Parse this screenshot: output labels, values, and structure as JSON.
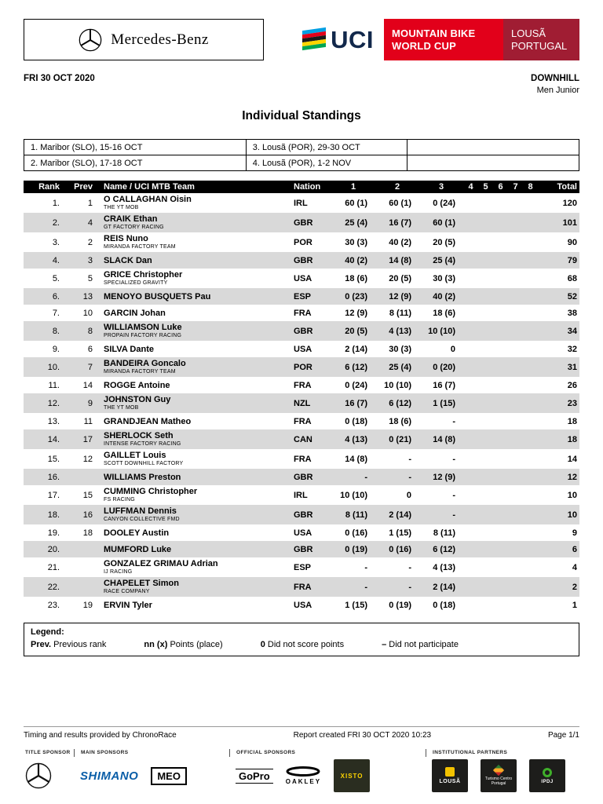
{
  "colors": {
    "uci_red": "#E2001A",
    "location_red": "#A01D33",
    "uci_navy": "#12284B",
    "table_header_bg": "#000000",
    "row_alt": "#D9D9D9",
    "shimano_blue": "#0A5EA8",
    "flag_blue": "#009FE3",
    "flag_red": "#E2001A",
    "flag_black": "#1A1A1A",
    "flag_yellow": "#FFD500",
    "flag_green": "#00A651"
  },
  "header": {
    "mercedes_label": "Mercedes-Benz",
    "uci_label": "UCI",
    "series_line1": "MOUNTAIN BIKE",
    "series_line2": "WORLD CUP",
    "location_line1": "LOUSÃ",
    "location_line2": "PORTUGAL"
  },
  "meta": {
    "date": "FRI 30 OCT 2020",
    "discipline": "DOWNHILL",
    "category": "Men Junior",
    "title": "Individual Standings"
  },
  "events": [
    {
      "c1": "1. Maribor (SLO), 15-16 OCT",
      "c2": "3. Lousã (POR), 29-30 OCT",
      "c3": ""
    },
    {
      "c1": "2. Maribor (SLO), 17-18 OCT",
      "c2": "4. Lousã (POR), 1-2 NOV",
      "c3": ""
    }
  ],
  "table": {
    "headers": [
      "Rank",
      "Prev",
      "Name / UCI MTB Team",
      "Nation",
      "1",
      "2",
      "3",
      "4",
      "5",
      "6",
      "7",
      "8",
      "Total"
    ],
    "rows": [
      {
        "rank": "1.",
        "prev": "1",
        "name": "O CALLAGHAN Oisin",
        "team": "THE YT MOB",
        "nation": "IRL",
        "r1": "60 (1)",
        "r2": "60 (1)",
        "r3": "0 (24)",
        "total": "120"
      },
      {
        "rank": "2.",
        "prev": "4",
        "name": "CRAIK Ethan",
        "team": "GT FACTORY RACING",
        "nation": "GBR",
        "r1": "25 (4)",
        "r2": "16 (7)",
        "r3": "60 (1)",
        "total": "101"
      },
      {
        "rank": "3.",
        "prev": "2",
        "name": "REIS Nuno",
        "team": "MIRANDA FACTORY TEAM",
        "nation": "POR",
        "r1": "30 (3)",
        "r2": "40 (2)",
        "r3": "20 (5)",
        "total": "90"
      },
      {
        "rank": "4.",
        "prev": "3",
        "name": "SLACK Dan",
        "team": "",
        "nation": "GBR",
        "r1": "40 (2)",
        "r2": "14 (8)",
        "r3": "25 (4)",
        "total": "79"
      },
      {
        "rank": "5.",
        "prev": "5",
        "name": "GRICE Christopher",
        "team": "SPECIALIZED GRAVITY",
        "nation": "USA",
        "r1": "18 (6)",
        "r2": "20 (5)",
        "r3": "30 (3)",
        "total": "68"
      },
      {
        "rank": "6.",
        "prev": "13",
        "name": "MENOYO BUSQUETS Pau",
        "team": "",
        "nation": "ESP",
        "r1": "0 (23)",
        "r2": "12 (9)",
        "r3": "40 (2)",
        "total": "52"
      },
      {
        "rank": "7.",
        "prev": "10",
        "name": "GARCIN Johan",
        "team": "",
        "nation": "FRA",
        "r1": "12 (9)",
        "r2": "8 (11)",
        "r3": "18 (6)",
        "total": "38"
      },
      {
        "rank": "8.",
        "prev": "8",
        "name": "WILLIAMSON Luke",
        "team": "PROPAIN FACTORY RACING",
        "nation": "GBR",
        "r1": "20 (5)",
        "r2": "4 (13)",
        "r3": "10 (10)",
        "total": "34"
      },
      {
        "rank": "9.",
        "prev": "6",
        "name": "SILVA Dante",
        "team": "",
        "nation": "USA",
        "r1": "2 (14)",
        "r2": "30 (3)",
        "r3": "0",
        "total": "32"
      },
      {
        "rank": "10.",
        "prev": "7",
        "name": "BANDEIRA Goncalo",
        "team": "MIRANDA FACTORY TEAM",
        "nation": "POR",
        "r1": "6 (12)",
        "r2": "25 (4)",
        "r3": "0 (20)",
        "total": "31"
      },
      {
        "rank": "11.",
        "prev": "14",
        "name": "ROGGE Antoine",
        "team": "",
        "nation": "FRA",
        "r1": "0 (24)",
        "r2": "10 (10)",
        "r3": "16 (7)",
        "total": "26"
      },
      {
        "rank": "12.",
        "prev": "9",
        "name": "JOHNSTON Guy",
        "team": "THE YT MOB",
        "nation": "NZL",
        "r1": "16 (7)",
        "r2": "6 (12)",
        "r3": "1 (15)",
        "total": "23"
      },
      {
        "rank": "13.",
        "prev": "11",
        "name": "GRANDJEAN Matheo",
        "team": "",
        "nation": "FRA",
        "r1": "0 (18)",
        "r2": "18 (6)",
        "r3": "-",
        "total": "18"
      },
      {
        "rank": "14.",
        "prev": "17",
        "name": "SHERLOCK Seth",
        "team": "INTENSE FACTORY RACING",
        "nation": "CAN",
        "r1": "4 (13)",
        "r2": "0 (21)",
        "r3": "14 (8)",
        "total": "18"
      },
      {
        "rank": "15.",
        "prev": "12",
        "name": "GAILLET Louis",
        "team": "SCOTT DOWNHILL FACTORY",
        "nation": "FRA",
        "r1": "14 (8)",
        "r2": "-",
        "r3": "-",
        "total": "14"
      },
      {
        "rank": "16.",
        "prev": "",
        "name": "WILLIAMS Preston",
        "team": "",
        "nation": "GBR",
        "r1": "-",
        "r2": "-",
        "r3": "12 (9)",
        "total": "12"
      },
      {
        "rank": "17.",
        "prev": "15",
        "name": "CUMMING Christopher",
        "team": "FS RACING",
        "nation": "IRL",
        "r1": "10 (10)",
        "r2": "0",
        "r3": "-",
        "total": "10"
      },
      {
        "rank": "18.",
        "prev": "16",
        "name": "LUFFMAN Dennis",
        "team": "CANYON COLLECTIVE FMD",
        "nation": "GBR",
        "r1": "8 (11)",
        "r2": "2 (14)",
        "r3": "-",
        "total": "10"
      },
      {
        "rank": "19.",
        "prev": "18",
        "name": "DOOLEY Austin",
        "team": "",
        "nation": "USA",
        "r1": "0 (16)",
        "r2": "1 (15)",
        "r3": "8 (11)",
        "total": "9"
      },
      {
        "rank": "20.",
        "prev": "",
        "name": "MUMFORD Luke",
        "team": "",
        "nation": "GBR",
        "r1": "0 (19)",
        "r2": "0 (16)",
        "r3": "6 (12)",
        "total": "6"
      },
      {
        "rank": "21.",
        "prev": "",
        "name": "GONZALEZ GRIMAU Adrian",
        "team": "IJ RACING",
        "nation": "ESP",
        "r1": "-",
        "r2": "-",
        "r3": "4 (13)",
        "total": "4"
      },
      {
        "rank": "22.",
        "prev": "",
        "name": "CHAPELET Simon",
        "team": "RACE COMPANY",
        "nation": "FRA",
        "r1": "-",
        "r2": "-",
        "r3": "2 (14)",
        "total": "2"
      },
      {
        "rank": "23.",
        "prev": "19",
        "name": "ERVIN Tyler",
        "team": "",
        "nation": "USA",
        "r1": "1 (15)",
        "r2": "0 (19)",
        "r3": "0 (18)",
        "total": "1"
      }
    ]
  },
  "legend": {
    "title": "Legend:",
    "items": [
      {
        "key": "Prev.",
        "text": "Previous rank"
      },
      {
        "key": "nn (x)",
        "text": "Points (place)"
      },
      {
        "key": "0",
        "text": "Did not score points"
      },
      {
        "key": "–",
        "text": "Did not participate"
      }
    ]
  },
  "footer": {
    "timing": "Timing and results provided by ChronoRace",
    "report": "Report created FRI 30 OCT 2020 10:23",
    "page": "Page 1/1"
  },
  "sponsors": {
    "groups": [
      {
        "label": "TITLE SPONSOR",
        "names": [
          "Mercedes-Benz"
        ]
      },
      {
        "label": "MAIN SPONSORS",
        "names": [
          "SHIMANO",
          "MEO"
        ]
      },
      {
        "label": "OFFICIAL SPONSORS",
        "names": [
          "GoPro",
          "OAKLEY",
          "XISTO"
        ]
      },
      {
        "label": "INSTITUTIONAL PARTNERS",
        "names": [
          "LOUSÃ",
          "Turismo Centro Portugal",
          "IPDJ"
        ]
      }
    ]
  }
}
